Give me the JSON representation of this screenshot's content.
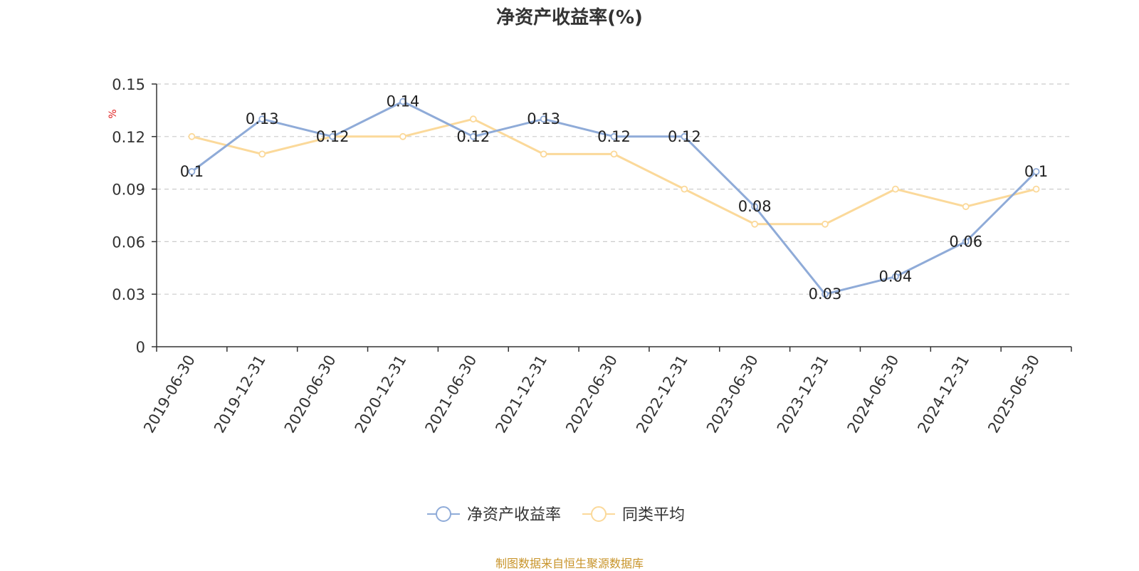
{
  "chart_data": {
    "type": "line",
    "title": "净资产收益率(%)",
    "ylabel": "%",
    "xlabel": "",
    "ylim": [
      0,
      0.15
    ],
    "yticks": [
      "0",
      "0.03",
      "0.06",
      "0.09",
      "0.12",
      "0.15"
    ],
    "categories": [
      "2019-06-30",
      "2019-12-31",
      "2020-06-30",
      "2020-12-31",
      "2021-06-30",
      "2021-12-31",
      "2022-06-30",
      "2022-12-31",
      "2023-06-30",
      "2023-12-31",
      "2024-06-30",
      "2024-12-31",
      "2025-06-30"
    ],
    "grid": true,
    "legend_position": "bottom",
    "series": [
      {
        "name": "净资产收益率",
        "color": "#8fabd8",
        "values": [
          0.1,
          0.13,
          0.12,
          0.14,
          0.12,
          0.13,
          0.12,
          0.12,
          0.08,
          0.03,
          0.04,
          0.06,
          0.1
        ],
        "labels": [
          "0.1",
          "0.13",
          "0.12",
          "0.14",
          "0.12",
          "0.13",
          "0.12",
          "0.12",
          "0.08",
          "0.03",
          "0.04",
          "0.06",
          "0.1"
        ]
      },
      {
        "name": "同类平均",
        "color": "#fbd99a",
        "values": [
          0.12,
          0.11,
          0.12,
          0.12,
          0.13,
          0.11,
          0.11,
          0.09,
          0.07,
          0.07,
          0.09,
          0.08,
          0.09
        ]
      }
    ]
  },
  "footer": {
    "source": "制图数据来自恒生聚源数据库"
  },
  "colors": {
    "ylabel_unit": "#e02020",
    "footer": "#c8942a"
  }
}
